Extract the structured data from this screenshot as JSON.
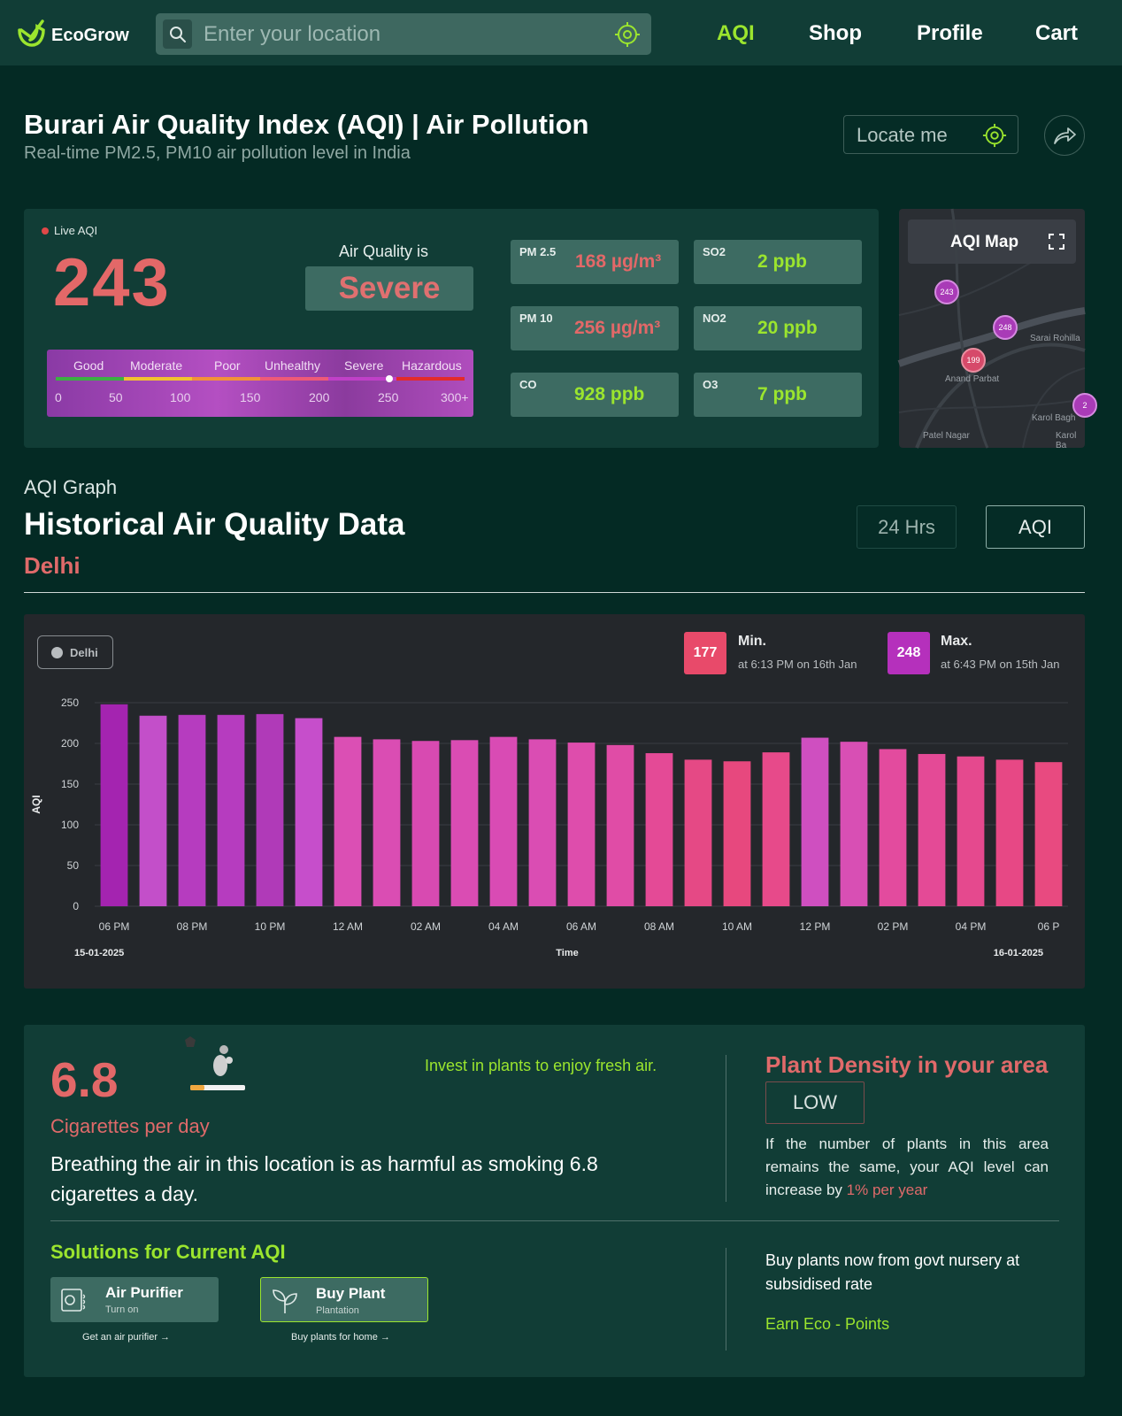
{
  "nav": {
    "brand": "EcoGrow",
    "search_placeholder": "Enter your location",
    "links": [
      "AQI",
      "Shop",
      "Profile",
      "Cart"
    ],
    "active_color": "#9be52e",
    "icons": [
      "leaf-logo-icon",
      "search-icon",
      "target-icon"
    ]
  },
  "header": {
    "title": "Burari Air Quality Index (AQI) | Air Pollution",
    "subtitle": "Real-time PM2.5, PM10 air pollution level in India",
    "locate_label": "Locate me",
    "icons": [
      "target-icon",
      "share-icon"
    ]
  },
  "aqi": {
    "live_label": "Live AQI",
    "value": "243",
    "quality_label": "Air Quality is",
    "quality": "Severe",
    "scale_labels": [
      "Good",
      "Moderate",
      "Poor",
      "Unhealthy",
      "Severe",
      "Hazardous"
    ],
    "scale_numbers": [
      "0",
      "50",
      "100",
      "150",
      "200",
      "250",
      "300+"
    ],
    "scale_colors": [
      "#3cb043",
      "#f2c230",
      "#f2923a",
      "#ee5a78",
      "#c040c8",
      "#e32b2b"
    ],
    "pollutants": [
      {
        "name": "PM 2.5",
        "value": "168 µg/m³",
        "level": "high"
      },
      {
        "name": "SO2",
        "value": "2 ppb",
        "level": "low"
      },
      {
        "name": "PM 10",
        "value": "256 µg/m³",
        "level": "high"
      },
      {
        "name": "NO2",
        "value": "20 ppb",
        "level": "low"
      },
      {
        "name": "CO",
        "value": "928 ppb",
        "level": "low"
      },
      {
        "name": "O3",
        "value": "7 ppb",
        "level": "low"
      }
    ]
  },
  "map": {
    "title": "AQI Map",
    "pins": [
      "243",
      "248",
      "199",
      "2"
    ],
    "places": [
      "Sarai Rohilla",
      "Anand Parbat",
      "Karol Bagh",
      "Patel Nagar",
      "Karol Ba"
    ]
  },
  "history": {
    "small_label": "AQI Graph",
    "title": "Historical Air Quality Data",
    "city": "Delhi",
    "range_button": "24 Hrs",
    "metric_button": "AQI",
    "legend": "Delhi",
    "min": {
      "value": "177",
      "label": "Min.",
      "detail": "at 6:13 PM on 16th Jan",
      "color": "#e84a6a"
    },
    "max": {
      "value": "248",
      "label": "Max.",
      "detail": "at 6:43 PM on 15th Jan",
      "color": "#b530bc"
    }
  },
  "chart_data": {
    "type": "bar",
    "ylabel": "AQI",
    "xlabel": "Time",
    "ylim": [
      0,
      250
    ],
    "yticks": [
      0,
      50,
      100,
      150,
      200,
      250
    ],
    "xticks": [
      "06 PM",
      "08 PM",
      "10 PM",
      "12 AM",
      "02 AM",
      "04 AM",
      "06 AM",
      "08 AM",
      "10 AM",
      "12 PM",
      "02 PM",
      "04 PM",
      "06 P"
    ],
    "start_date": "15-01-2025",
    "end_date": "16-01-2025",
    "categories": [
      "06 PM",
      "07 PM",
      "08 PM",
      "09 PM",
      "10 PM",
      "11 PM",
      "12 AM",
      "01 AM",
      "02 AM",
      "03 AM",
      "04 AM",
      "05 AM",
      "06 AM",
      "07 AM",
      "08 AM",
      "09 AM",
      "10 AM",
      "11 AM",
      "12 PM",
      "01 PM",
      "02 PM",
      "03 PM",
      "04 PM",
      "05 PM",
      "06 PM"
    ],
    "values": [
      248,
      234,
      235,
      235,
      236,
      231,
      208,
      205,
      203,
      204,
      208,
      205,
      201,
      198,
      188,
      180,
      178,
      189,
      207,
      202,
      193,
      187,
      184,
      180,
      177
    ],
    "colors": [
      "#a424b0",
      "#c34fc9",
      "#b63cbf",
      "#b63cbf",
      "#b03ab8",
      "#c64ecb",
      "#db4fb4",
      "#da4db3",
      "#d84ab1",
      "#da4cb3",
      "#d94bb4",
      "#da4db3",
      "#de4dac",
      "#e04ca6",
      "#e44a96",
      "#e54985",
      "#e7487e",
      "#e74a8a",
      "#cf4fc0",
      "#d84fb4",
      "#e34b9e",
      "#e44a96",
      "#e5498e",
      "#e74885",
      "#e84a80"
    ]
  },
  "cigarettes": {
    "value": "6.8",
    "label": "Cigarettes per day",
    "text": "Breathing the air in this location is as harmful as smoking 6.8 cigarettes a day.",
    "invest": "Invest in plants to enjoy fresh air."
  },
  "plant_density": {
    "title": "Plant Density in your area",
    "level": "LOW",
    "text": "If the number of plants in this area remains the same, your AQI level can increase by",
    "percent": "1% per year"
  },
  "solutions": {
    "title": "Solutions for Current AQI",
    "items": [
      {
        "name": "Air Purifier",
        "sub": "Turn on",
        "link": "Get an air purifier",
        "icon": "air-purifier-icon"
      },
      {
        "name": "Buy Plant",
        "sub": "Plantation",
        "link": "Buy plants for home",
        "icon": "plant-icon"
      }
    ],
    "buy_text": "Buy plants now from govt nursery at subsidised rate",
    "earn": "Earn Eco - Points"
  }
}
